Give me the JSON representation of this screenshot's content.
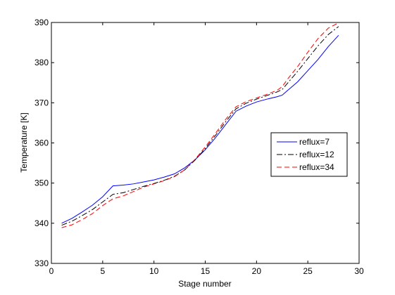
{
  "chart_data": {
    "type": "line",
    "title": "",
    "xlabel": "Stage number",
    "ylabel": "Temperature [K]",
    "xlim": [
      0,
      30
    ],
    "ylim": [
      330,
      390
    ],
    "xticks": [
      0,
      5,
      10,
      15,
      20,
      25,
      30
    ],
    "yticks": [
      330,
      340,
      350,
      360,
      370,
      380,
      390
    ],
    "grid": false,
    "legend_position": "right",
    "x": [
      1,
      2,
      3,
      4,
      5,
      6,
      7,
      8,
      9,
      10,
      11,
      12,
      13,
      14,
      15,
      16,
      17,
      18,
      19,
      20,
      21,
      22,
      22.5,
      23,
      24,
      25,
      26,
      27,
      28
    ],
    "series": [
      {
        "name": "reflux=7",
        "color": "#0000ff",
        "style": "solid",
        "values": [
          340.0,
          341.2,
          342.8,
          344.5,
          346.6,
          349.3,
          349.5,
          349.8,
          350.3,
          350.8,
          351.5,
          352.3,
          353.8,
          355.8,
          358.3,
          361.3,
          364.6,
          367.9,
          369.2,
          370.2,
          370.9,
          371.5,
          371.9,
          373.0,
          375.2,
          378.0,
          380.8,
          384.0,
          386.8
        ]
      },
      {
        "name": "reflux=12",
        "color": "#000000",
        "style": "dashdot",
        "values": [
          339.5,
          340.5,
          341.9,
          343.4,
          345.3,
          347.2,
          347.6,
          348.4,
          349.2,
          349.9,
          350.7,
          351.7,
          353.3,
          355.7,
          358.6,
          361.9,
          365.3,
          368.5,
          369.9,
          370.9,
          371.8,
          372.7,
          373.3,
          374.8,
          377.8,
          381.0,
          384.2,
          387.0,
          389.0
        ]
      },
      {
        "name": "reflux=34",
        "color": "#ff0000",
        "style": "dashed",
        "values": [
          338.9,
          339.6,
          340.9,
          342.4,
          344.4,
          346.1,
          346.8,
          347.9,
          349.0,
          349.8,
          350.6,
          351.6,
          353.3,
          355.9,
          359.0,
          362.4,
          365.9,
          369.0,
          370.3,
          371.2,
          372.1,
          373.1,
          374.0,
          375.8,
          379.0,
          382.6,
          386.0,
          388.6,
          389.9
        ]
      }
    ]
  }
}
